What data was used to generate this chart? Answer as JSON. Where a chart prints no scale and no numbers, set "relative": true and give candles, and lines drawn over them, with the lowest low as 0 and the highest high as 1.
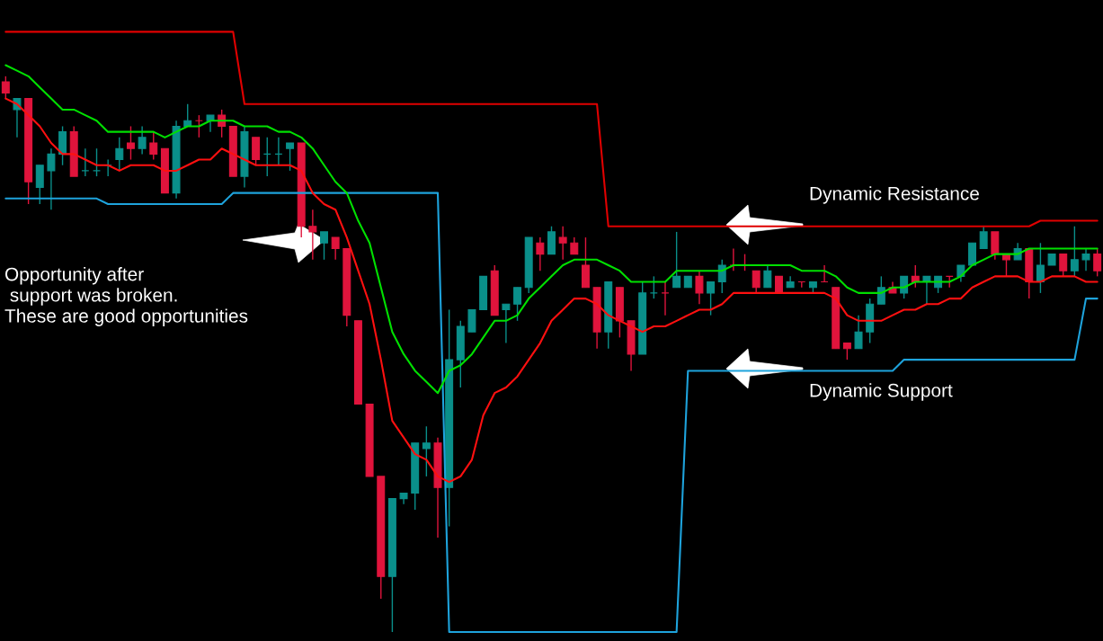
{
  "chart_data": {
    "type": "candlestick",
    "relative": true,
    "tick_labels": false,
    "categories": [
      null,
      null,
      null,
      null,
      null,
      null,
      null,
      null,
      null,
      null,
      null,
      null,
      null,
      null,
      null,
      null,
      null,
      null,
      null,
      null,
      null,
      null,
      null,
      null,
      null,
      null,
      null,
      null,
      null,
      null,
      null,
      null,
      null,
      null,
      null,
      null,
      null,
      null,
      null,
      null,
      null,
      null,
      null,
      null,
      null,
      null,
      null,
      null,
      null,
      null,
      null,
      null,
      null,
      null,
      null,
      null,
      null,
      null,
      null,
      null,
      null,
      null,
      null,
      null,
      null,
      null,
      null,
      null,
      null,
      null,
      null,
      null,
      null,
      null,
      null,
      null,
      null,
      null,
      null,
      null,
      null,
      null,
      null,
      null,
      null,
      null,
      null,
      null,
      null,
      null,
      null,
      null,
      null,
      null,
      null,
      null,
      null
    ],
    "ohlc": [
      [
        0.99,
        1,
        0.96,
        0.97
      ],
      [
        0.94,
        0.96,
        0.89,
        0.96
      ],
      [
        0.96,
        0.96,
        0.77,
        0.81
      ],
      [
        0.8,
        0.84,
        0.77,
        0.84
      ],
      [
        0.83,
        0.87,
        0.76,
        0.86
      ],
      [
        0.86,
        0.91,
        0.84,
        0.9
      ],
      [
        0.9,
        0.91,
        0.82,
        0.82
      ],
      [
        0.83,
        0.87,
        0.82,
        0.83
      ],
      [
        0.83,
        0.87,
        0.82,
        0.83
      ],
      [
        0.84,
        0.85,
        0.82,
        0.84
      ],
      [
        0.85,
        0.89,
        0.83,
        0.87
      ],
      [
        0.88,
        0.91,
        0.85,
        0.87
      ],
      [
        0.87,
        0.91,
        0.86,
        0.89
      ],
      [
        0.88,
        0.9,
        0.85,
        0.86
      ],
      [
        0.87,
        0.87,
        0.79,
        0.79
      ],
      [
        0.79,
        0.92,
        0.78,
        0.91
      ],
      [
        0.91,
        0.95,
        0.91,
        0.92
      ],
      [
        0.92,
        0.93,
        0.89,
        0.92
      ],
      [
        0.92,
        0.93,
        0.9,
        0.93
      ],
      [
        0.93,
        0.94,
        0.89,
        0.91
      ],
      [
        0.91,
        0.91,
        0.82,
        0.82
      ],
      [
        0.82,
        0.91,
        0.8,
        0.9
      ],
      [
        0.89,
        0.89,
        0.84,
        0.85
      ],
      [
        0.86,
        0.89,
        0.82,
        0.86
      ],
      [
        0.86,
        0.89,
        0.84,
        0.86
      ],
      [
        0.87,
        0.88,
        0.83,
        0.88
      ],
      [
        0.88,
        0.88,
        0.71,
        0.73
      ],
      [
        0.73,
        0.76,
        0.67,
        0.72
      ],
      [
        0.7,
        0.72,
        0.67,
        0.72
      ],
      [
        0.71,
        0.71,
        0.67,
        0.69
      ],
      [
        0.69,
        0.69,
        0.55,
        0.57
      ],
      [
        0.56,
        0.56,
        0.41,
        0.41
      ],
      [
        0.41,
        0.41,
        0.28,
        0.28
      ],
      [
        0.28,
        0.28,
        0.06,
        0.1
      ],
      [
        0.1,
        0.24,
        0,
        0.24
      ],
      [
        0.24,
        0.25,
        0.23,
        0.25
      ],
      [
        0.25,
        0.34,
        0.22,
        0.34
      ],
      [
        0.33,
        0.37,
        0.28,
        0.34
      ],
      [
        0.34,
        0.35,
        0.17,
        0.26
      ],
      [
        0.26,
        0.58,
        0.19,
        0.49
      ],
      [
        0.49,
        0.56,
        0.44,
        0.55
      ],
      [
        0.54,
        0.58,
        0.54,
        0.58
      ],
      [
        0.58,
        0.64,
        0.58,
        0.64
      ],
      [
        0.65,
        0.66,
        0.57,
        0.57
      ],
      [
        0.58,
        0.59,
        0.52,
        0.59
      ],
      [
        0.59,
        0.62,
        0.56,
        0.62
      ],
      [
        0.62,
        0.71,
        0.61,
        0.71
      ],
      [
        0.7,
        0.71,
        0.65,
        0.68
      ],
      [
        0.68,
        0.73,
        0.68,
        0.72
      ],
      [
        0.71,
        0.73,
        0.67,
        0.7
      ],
      [
        0.7,
        0.71,
        0.68,
        0.68
      ],
      [
        0.66,
        0.71,
        0.62,
        0.62
      ],
      [
        0.62,
        0.62,
        0.51,
        0.54
      ],
      [
        0.54,
        0.63,
        0.51,
        0.63
      ],
      [
        0.62,
        0.62,
        0.53,
        0.56
      ],
      [
        0.56,
        0.56,
        0.47,
        0.5
      ],
      [
        0.5,
        0.63,
        0.5,
        0.61
      ],
      [
        0.61,
        0.64,
        0.6,
        0.61
      ],
      [
        0.61,
        0.63,
        0.57,
        0.61
      ],
      [
        0.62,
        0.72,
        0.62,
        0.64
      ],
      [
        0.62,
        0.64,
        0.62,
        0.64
      ],
      [
        0.64,
        0.65,
        0.59,
        0.61
      ],
      [
        0.61,
        0.63,
        0.57,
        0.63
      ],
      [
        0.63,
        0.67,
        0.61,
        0.66
      ],
      [
        0.66,
        0.69,
        0.65,
        0.66
      ],
      [
        0.66,
        0.68,
        0.65,
        0.66
      ],
      [
        0.65,
        0.65,
        0.61,
        0.62
      ],
      [
        0.62,
        0.66,
        0.62,
        0.65
      ],
      [
        0.64,
        0.64,
        0.61,
        0.61
      ],
      [
        0.62,
        0.64,
        0.62,
        0.63
      ],
      [
        0.63,
        0.63,
        0.62,
        0.63
      ],
      [
        0.62,
        0.63,
        0.61,
        0.63
      ],
      [
        0.63,
        0.66,
        0.63,
        0.63
      ],
      [
        0.62,
        0.62,
        0.51,
        0.51
      ],
      [
        0.52,
        0.52,
        0.49,
        0.51
      ],
      [
        0.51,
        0.57,
        0.51,
        0.54
      ],
      [
        0.54,
        0.6,
        0.52,
        0.59
      ],
      [
        0.59,
        0.64,
        0.59,
        0.62
      ],
      [
        0.62,
        0.63,
        0.61,
        0.61
      ],
      [
        0.61,
        0.64,
        0.6,
        0.64
      ],
      [
        0.64,
        0.66,
        0.62,
        0.63
      ],
      [
        0.63,
        0.64,
        0.59,
        0.64
      ],
      [
        0.62,
        0.64,
        0.61,
        0.64
      ],
      [
        0.64,
        0.64,
        0.62,
        0.64
      ],
      [
        0.64,
        0.66,
        0.63,
        0.66
      ],
      [
        0.66,
        0.7,
        0.66,
        0.7
      ],
      [
        0.69,
        0.73,
        0.69,
        0.72
      ],
      [
        0.72,
        0.72,
        0.67,
        0.68
      ],
      [
        0.68,
        0.68,
        0.64,
        0.67
      ],
      [
        0.67,
        0.7,
        0.67,
        0.69
      ],
      [
        0.69,
        0.69,
        0.6,
        0.63
      ],
      [
        0.63,
        0.7,
        0.61,
        0.66
      ],
      [
        0.66,
        0.68,
        0.66,
        0.68
      ],
      [
        0.68,
        0.68,
        0.64,
        0.65
      ],
      [
        0.65,
        0.73,
        0.64,
        0.67
      ],
      [
        0.67,
        0.69,
        0.65,
        0.68
      ],
      [
        0.68,
        0.69,
        0.64,
        0.65
      ]
    ],
    "colors": [
      "#e0143c",
      "#0a8f8a",
      "#e0143c",
      "#0a8f8a",
      "#0a8f8a",
      "#0a8f8a",
      "#e0143c",
      "#0a8f8a",
      "#0a8f8a",
      "#0a8f8a",
      "#0a8f8a",
      "#e0143c",
      "#0a8f8a",
      "#e0143c",
      "#e0143c",
      "#0a8f8a",
      "#0a8f8a",
      "#e0143c",
      "#0a8f8a",
      "#e0143c",
      "#e0143c",
      "#0a8f8a",
      "#e0143c",
      "#0a8f8a",
      "#0a8f8a",
      "#0a8f8a",
      "#e0143c",
      "#e0143c",
      "#0a8f8a",
      "#e0143c",
      "#e0143c",
      "#e0143c",
      "#e0143c",
      "#e0143c",
      "#0a8f8a",
      "#0a8f8a",
      "#0a8f8a",
      "#0a8f8a",
      "#e0143c",
      "#0a8f8a",
      "#0a8f8a",
      "#0a8f8a",
      "#0a8f8a",
      "#e0143c",
      "#0a8f8a",
      "#0a8f8a",
      "#0a8f8a",
      "#e0143c",
      "#0a8f8a",
      "#e0143c",
      "#e0143c",
      "#e0143c",
      "#e0143c",
      "#0a8f8a",
      "#e0143c",
      "#e0143c",
      "#0a8f8a",
      "#0a8f8a",
      "#e0143c",
      "#0a8f8a",
      "#0a8f8a",
      "#e0143c",
      "#0a8f8a",
      "#0a8f8a",
      "#e0143c",
      "#e0143c",
      "#e0143c",
      "#0a8f8a",
      "#e0143c",
      "#0a8f8a",
      "#e0143c",
      "#0a8f8a",
      "#e0143c",
      "#e0143c",
      "#e0143c",
      "#0a8f8a",
      "#0a8f8a",
      "#0a8f8a",
      "#e0143c",
      "#0a8f8a",
      "#e0143c",
      "#0a8f8a",
      "#0a8f8a",
      "#e0143c",
      "#0a8f8a",
      "#0a8f8a",
      "#0a8f8a",
      "#e0143c",
      "#e0143c",
      "#0a8f8a",
      "#e0143c",
      "#0a8f8a",
      "#0a8f8a",
      "#e0143c",
      "#0a8f8a",
      "#0a8f8a",
      "#e0143c"
    ],
    "series": [
      {
        "type": "line",
        "color": "#e00000",
        "values": [
          1.08,
          1.08,
          1.08,
          1.08,
          1.08,
          1.08,
          1.08,
          1.08,
          1.08,
          1.08,
          1.08,
          1.08,
          1.08,
          1.08,
          1.08,
          1.08,
          1.08,
          1.08,
          1.08,
          1.08,
          1.08,
          0.95,
          0.95,
          0.95,
          0.95,
          0.95,
          0.95,
          0.95,
          0.95,
          0.95,
          0.95,
          0.95,
          0.95,
          0.95,
          0.95,
          0.95,
          0.95,
          0.95,
          0.95,
          0.95,
          0.95,
          0.95,
          0.95,
          0.95,
          0.95,
          0.95,
          0.95,
          0.95,
          0.95,
          0.95,
          0.95,
          0.95,
          0.95,
          0.73,
          0.73,
          0.73,
          0.73,
          0.73,
          0.73,
          0.73,
          0.73,
          0.73,
          0.73,
          0.73,
          0.73,
          0.73,
          0.73,
          0.73,
          0.73,
          0.73,
          0.73,
          0.73,
          0.73,
          0.73,
          0.73,
          0.73,
          0.73,
          0.73,
          0.73,
          0.73,
          0.73,
          0.73,
          0.73,
          0.73,
          0.73,
          0.73,
          0.73,
          0.73,
          0.73,
          0.73,
          0.73,
          0.74,
          0.74,
          0.74,
          0.74,
          0.74,
          0.74
        ]
      },
      {
        "type": "line",
        "color": "#1ea3dc",
        "values": [
          0.78,
          0.78,
          0.78,
          0.78,
          0.78,
          0.78,
          0.78,
          0.78,
          0.78,
          0.77,
          0.77,
          0.77,
          0.77,
          0.77,
          0.77,
          0.77,
          0.77,
          0.77,
          0.77,
          0.77,
          0.79,
          0.79,
          0.79,
          0.79,
          0.79,
          0.79,
          0.79,
          0.79,
          0.79,
          0.79,
          0.79,
          0.79,
          0.79,
          0.79,
          0.79,
          0.79,
          0.79,
          0.79,
          0.79,
          0,
          0,
          0,
          0,
          0,
          0,
          0,
          0,
          0,
          0,
          0,
          0,
          0,
          0,
          0,
          0,
          0,
          0,
          0,
          0,
          0,
          0.47,
          0.47,
          0.47,
          0.47,
          0.47,
          0.47,
          0.47,
          0.47,
          0.47,
          0.47,
          0.47,
          0.47,
          0.47,
          0.47,
          0.47,
          0.47,
          0.47,
          0.47,
          0.47,
          0.49,
          0.49,
          0.49,
          0.49,
          0.49,
          0.49,
          0.49,
          0.49,
          0.49,
          0.49,
          0.49,
          0.49,
          0.49,
          0.49,
          0.49,
          0.49,
          0.6,
          0.6
        ]
      },
      {
        "type": "line",
        "color": "#00e000",
        "values": [
          1.02,
          1.01,
          1.0,
          0.98,
          0.96,
          0.94,
          0.94,
          0.93,
          0.92,
          0.9,
          0.9,
          0.9,
          0.9,
          0.9,
          0.89,
          0.9,
          0.91,
          0.91,
          0.92,
          0.92,
          0.92,
          0.91,
          0.91,
          0.91,
          0.9,
          0.9,
          0.89,
          0.87,
          0.84,
          0.81,
          0.79,
          0.74,
          0.7,
          0.62,
          0.54,
          0.5,
          0.47,
          0.45,
          0.43,
          0.47,
          0.48,
          0.5,
          0.53,
          0.56,
          0.56,
          0.57,
          0.6,
          0.62,
          0.64,
          0.66,
          0.67,
          0.67,
          0.67,
          0.66,
          0.65,
          0.63,
          0.63,
          0.63,
          0.63,
          0.65,
          0.65,
          0.65,
          0.65,
          0.65,
          0.66,
          0.66,
          0.66,
          0.66,
          0.66,
          0.66,
          0.65,
          0.65,
          0.65,
          0.64,
          0.62,
          0.61,
          0.61,
          0.61,
          0.62,
          0.62,
          0.63,
          0.63,
          0.63,
          0.63,
          0.64,
          0.66,
          0.67,
          0.68,
          0.68,
          0.68,
          0.69,
          0.69,
          0.69,
          0.69,
          0.69,
          0.69,
          0.69
        ]
      },
      {
        "type": "line",
        "color": "#ff1010",
        "values": [
          0.96,
          0.95,
          0.93,
          0.91,
          0.88,
          0.86,
          0.86,
          0.85,
          0.84,
          0.84,
          0.83,
          0.84,
          0.84,
          0.84,
          0.83,
          0.83,
          0.84,
          0.85,
          0.85,
          0.87,
          0.86,
          0.85,
          0.84,
          0.84,
          0.84,
          0.84,
          0.83,
          0.79,
          0.77,
          0.76,
          0.71,
          0.65,
          0.59,
          0.49,
          0.38,
          0.35,
          0.32,
          0.31,
          0.28,
          0.27,
          0.28,
          0.31,
          0.39,
          0.43,
          0.44,
          0.46,
          0.49,
          0.52,
          0.56,
          0.58,
          0.6,
          0.6,
          0.59,
          0.57,
          0.56,
          0.55,
          0.54,
          0.55,
          0.55,
          0.56,
          0.57,
          0.58,
          0.58,
          0.59,
          0.61,
          0.61,
          0.61,
          0.61,
          0.61,
          0.61,
          0.61,
          0.61,
          0.61,
          0.6,
          0.57,
          0.56,
          0.56,
          0.56,
          0.57,
          0.58,
          0.58,
          0.59,
          0.59,
          0.6,
          0.6,
          0.62,
          0.63,
          0.64,
          0.64,
          0.64,
          0.63,
          0.63,
          0.64,
          0.64,
          0.64,
          0.63,
          0.63
        ]
      }
    ],
    "annotations": [
      "Dynamic Resistance",
      "Dynamic Support",
      "Opportunity after\n support was broken.\nThese are good opportunities"
    ]
  }
}
